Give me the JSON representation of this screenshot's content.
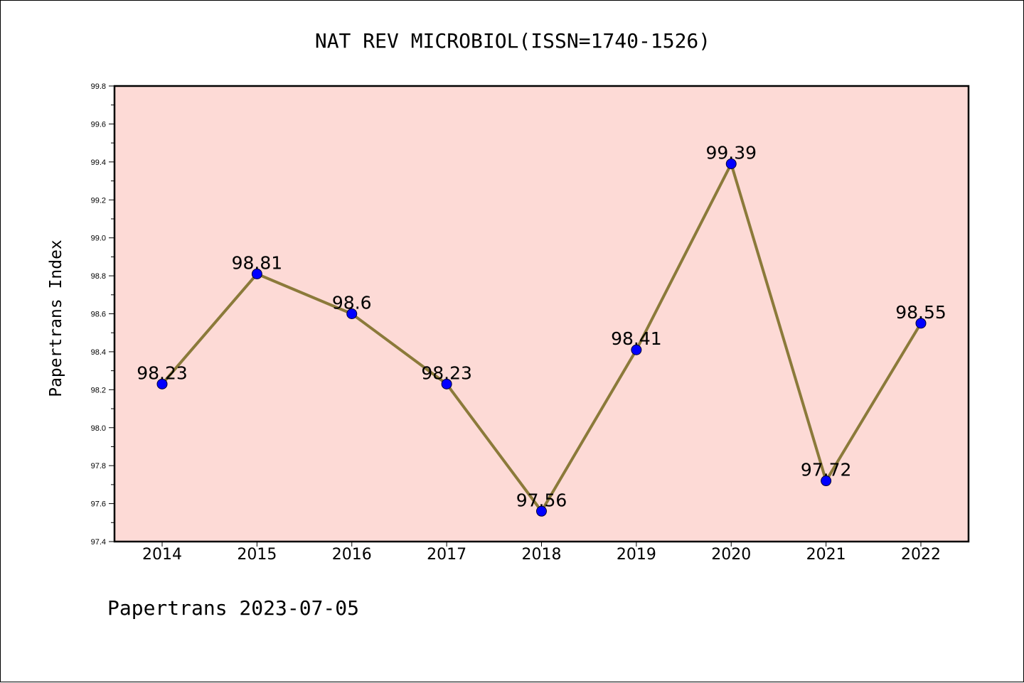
{
  "chart_data": {
    "type": "line",
    "title": "NAT REV MICROBIOL(ISSN=1740-1526)",
    "ylabel": "Papertrans Index",
    "xlabel": "",
    "footer": "Papertrans 2023-07-05",
    "categories": [
      "2014",
      "2015",
      "2016",
      "2017",
      "2018",
      "2019",
      "2020",
      "2021",
      "2022"
    ],
    "values": [
      98.23,
      98.81,
      98.6,
      98.23,
      97.56,
      98.41,
      99.39,
      97.72,
      98.55
    ],
    "data_labels": [
      "98.23",
      "98.81",
      "98.6",
      "98.23",
      "97.56",
      "98.41",
      "99.39",
      "97.72",
      "98.55"
    ],
    "ylim": [
      97.4,
      99.8
    ],
    "yticks": [
      "97.4",
      "97.6",
      "97.8",
      "98.0",
      "98.2",
      "98.4",
      "98.6",
      "98.8",
      "99.0",
      "99.2",
      "99.4",
      "99.6",
      "99.8"
    ],
    "grid": false,
    "colors": {
      "plot_background": "#fddad6",
      "line": "#8b7a3a",
      "marker": "#0000ff"
    }
  }
}
